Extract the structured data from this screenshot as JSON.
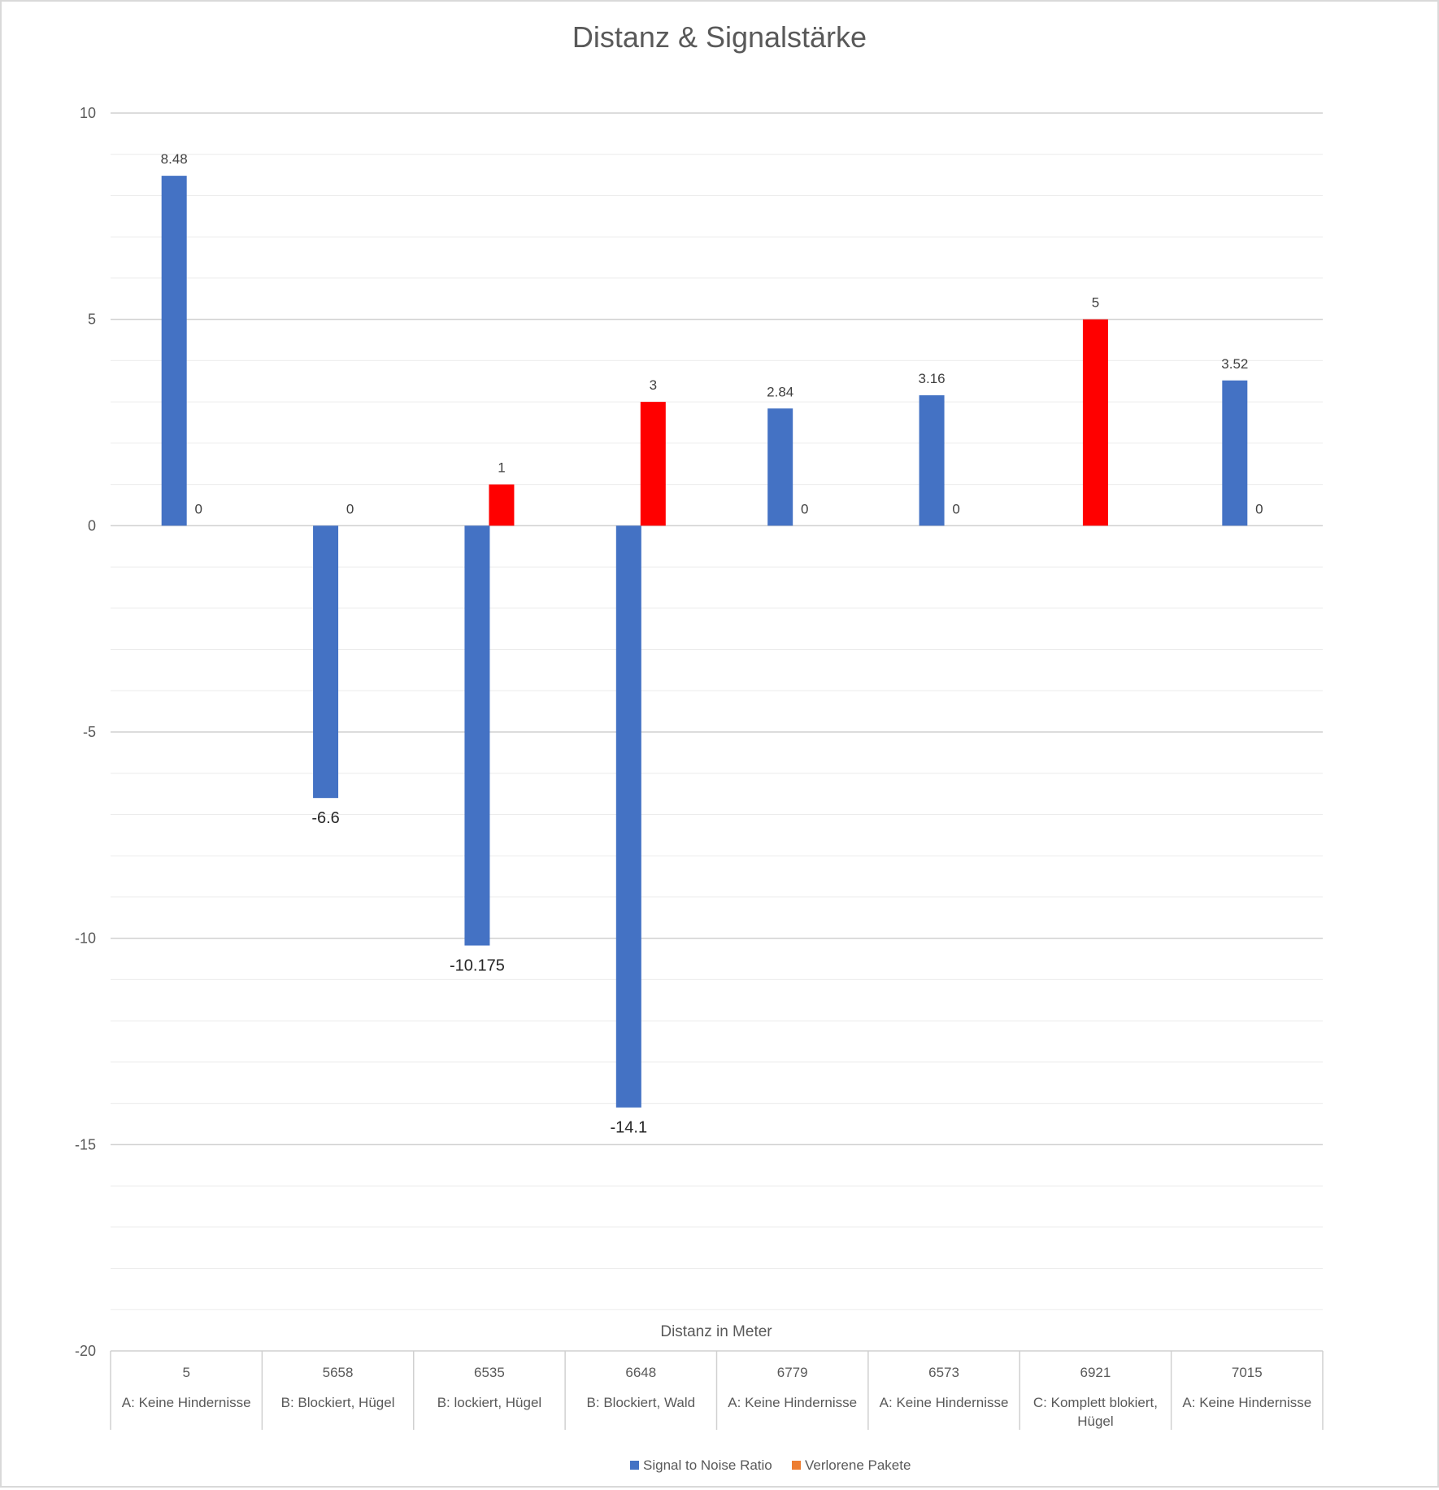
{
  "chart_data": {
    "type": "bar",
    "title": "Distanz & Signalstärke",
    "xlabel": "Distanz in Meter",
    "ylabel": "",
    "ylim": [
      -20,
      10
    ],
    "yticks": [
      10,
      5,
      0,
      -5,
      -10,
      -15,
      -20
    ],
    "grid": true,
    "legend_position": "bottom",
    "categories": [
      {
        "distance": "5",
        "condition": "A: Keine Hindernisse"
      },
      {
        "distance": "5658",
        "condition": "B: Blockiert, Hügel"
      },
      {
        "distance": "6535",
        "condition": "B: lockiert, Hügel"
      },
      {
        "distance": "6648",
        "condition": "B: Blockiert, Wald"
      },
      {
        "distance": "6779",
        "condition": "A: Keine Hindernisse"
      },
      {
        "distance": "6573",
        "condition": "A: Keine Hindernisse"
      },
      {
        "distance": "6921",
        "condition": "C: Komplett blokiert, Hügel"
      },
      {
        "distance": "7015",
        "condition": "A: Keine Hindernisse"
      }
    ],
    "series": [
      {
        "name": "Signal to Noise Ratio",
        "color": "#4472C4",
        "values": [
          8.48,
          -6.6,
          -10.175,
          -14.1,
          2.84,
          3.16,
          null,
          3.52
        ],
        "labels": [
          "8.48",
          "-6.6",
          "-10.175",
          "-14.1",
          "2.84",
          "3.16",
          "",
          "3.52"
        ]
      },
      {
        "name": "Verlorene Pakete",
        "color": "#FF0000",
        "legend_color": "#ED7D31",
        "values": [
          0,
          0,
          1,
          3,
          0,
          0,
          5,
          0
        ],
        "labels": [
          "0",
          "0",
          "1",
          "3",
          "0",
          "0",
          "5",
          "0"
        ]
      }
    ]
  }
}
